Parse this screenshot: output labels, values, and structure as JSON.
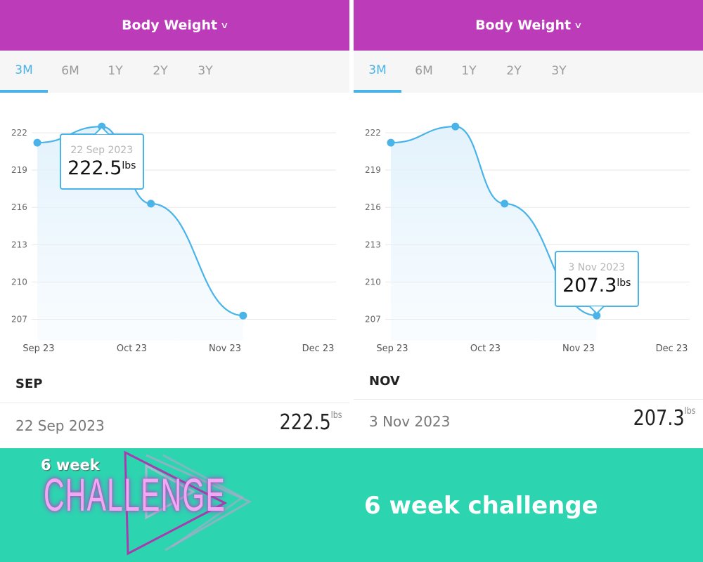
{
  "panels": [
    {
      "header": "Body Weight",
      "tabs": [
        "3M",
        "6M",
        "1Y",
        "2Y",
        "3Y"
      ],
      "active_tab": "3M",
      "tooltip": {
        "date": "22 Sep 2023",
        "value": "222.5",
        "unit": "lbs"
      },
      "month": "SEP",
      "row": {
        "date": "22 Sep 2023",
        "value": "222.5",
        "unit": "lbs"
      }
    },
    {
      "header": "Body Weight",
      "tabs": [
        "3M",
        "6M",
        "1Y",
        "2Y",
        "3Y"
      ],
      "active_tab": "3M",
      "tooltip": {
        "date": "3 Nov 2023",
        "value": "207.3",
        "unit": "lbs"
      },
      "month": "NOV",
      "row": {
        "date": "3 Nov 2023",
        "value": "207.3",
        "unit": "lbs"
      }
    }
  ],
  "chart_data": [
    {
      "type": "area",
      "title": "Body Weight",
      "unit": "lbs",
      "x_ticks": [
        "Sep 23",
        "Oct 23",
        "Nov 23",
        "Dec 23"
      ],
      "y_ticks": [
        222,
        219,
        216,
        213,
        210,
        207
      ],
      "ylim": [
        205.5,
        223.5
      ],
      "points": [
        {
          "date": "1 Sep 2023",
          "day": 0,
          "value": 221.2
        },
        {
          "date": "22 Sep 2023",
          "day": 21,
          "value": 222.5
        },
        {
          "date": "8 Oct 2023",
          "day": 37,
          "value": 216.3
        },
        {
          "date": "3 Nov 2023",
          "day": 67,
          "value": 207.3
        }
      ],
      "selected": 1,
      "colors": {
        "line": "#4ab3e8",
        "fill": "#e3f2fc"
      }
    },
    {
      "type": "area",
      "title": "Body Weight",
      "unit": "lbs",
      "x_ticks": [
        "Sep 23",
        "Oct 23",
        "Nov 23",
        "Dec 23"
      ],
      "y_ticks": [
        222,
        219,
        216,
        213,
        210,
        207
      ],
      "ylim": [
        205.5,
        223.5
      ],
      "points": [
        {
          "date": "1 Sep 2023",
          "day": 0,
          "value": 221.2
        },
        {
          "date": "22 Sep 2023",
          "day": 21,
          "value": 222.5
        },
        {
          "date": "8 Oct 2023",
          "day": 37,
          "value": 216.3
        },
        {
          "date": "3 Nov 2023",
          "day": 67,
          "value": 207.3
        }
      ],
      "selected": 3,
      "colors": {
        "line": "#4ab3e8",
        "fill": "#e3f2fc"
      }
    }
  ],
  "footer": {
    "logo_small": "6 week",
    "logo_big": "CHALLENGE",
    "caption": "6 week challenge"
  }
}
